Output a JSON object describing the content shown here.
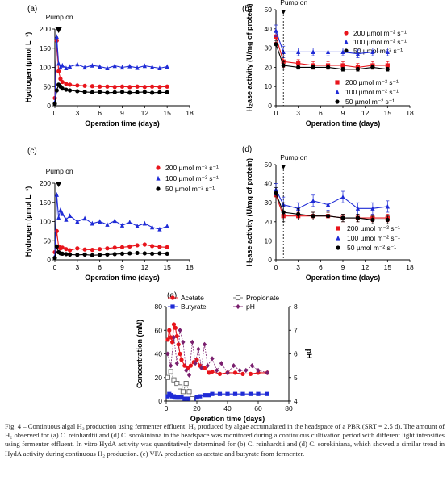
{
  "figure": {
    "caption": "Fig. 4 – Continuous algal H₂ production using fermenter effluent. H₂ produced by algae accumulated in the headspace of a PBR (SRT = 2.5 d). The amount of H₂ observed for (a) C. reinhardtii and (d) C. sorokiniana in the headspace was monitored during a continuous cultivation period with different light intensities using fermenter effluent. In vitro HydA activity was quantitatively determined for (b) C. reinhardtii and (d) C. sorokiniana, which showed a similar trend in HydA activity during continuous H₂ production. (e) VFA production as acetate and butyrate from fermenter."
  },
  "chart_data": [
    {
      "panel": "(a)",
      "type": "line",
      "annotation": "Pump on",
      "xlabel": "Operation time (days)",
      "ylabel": "Hydrogen (µmol L⁻¹)",
      "xlim": [
        0,
        18
      ],
      "ylim": [
        0,
        200
      ],
      "xticks": [
        0,
        3,
        6,
        9,
        12,
        15,
        18
      ],
      "yticks": [
        0,
        50,
        100,
        150,
        200
      ],
      "legend_position": "top-right",
      "series": [
        {
          "name": "200 µmol m⁻² s⁻¹",
          "color": "#e8141b",
          "marker": "circle",
          "x": [
            0,
            0.25,
            0.5,
            0.75,
            1,
            1.5,
            2,
            3,
            4,
            5,
            6,
            7,
            8,
            9,
            10,
            11,
            12,
            13,
            14,
            15
          ],
          "y": [
            20,
            170,
            90,
            70,
            62,
            57,
            55,
            53,
            52,
            51,
            50,
            50,
            49,
            50,
            49,
            50,
            49,
            50,
            49,
            50
          ]
        },
        {
          "name": "100 µmol m⁻² s⁻¹",
          "color": "#1f2bd6",
          "marker": "triangle",
          "x": [
            0,
            0.25,
            0.5,
            0.75,
            1,
            1.5,
            2,
            3,
            4,
            5,
            6,
            7,
            8,
            9,
            10,
            11,
            12,
            13,
            14,
            15
          ],
          "y": [
            10,
            180,
            110,
            100,
            105,
            98,
            102,
            108,
            100,
            105,
            102,
            98,
            104,
            100,
            103,
            99,
            104,
            101,
            98,
            102
          ]
        },
        {
          "name": "50 µmol m⁻² s⁻¹",
          "color": "#000000",
          "marker": "circle",
          "x": [
            0,
            0.25,
            0.5,
            0.75,
            1,
            1.5,
            2,
            3,
            4,
            5,
            6,
            7,
            8,
            9,
            10,
            11,
            12,
            13,
            14,
            15
          ],
          "y": [
            5,
            40,
            55,
            50,
            45,
            42,
            40,
            38,
            36,
            35,
            36,
            34,
            35,
            36,
            34,
            35,
            36,
            34,
            35,
            35
          ]
        }
      ]
    },
    {
      "panel": "(b)",
      "type": "line",
      "annotation": "Pump on",
      "xlabel": "Operation time (days)",
      "ylabel": "H₂ase activity (U/mg of protein)",
      "xlim": [
        0,
        18
      ],
      "ylim": [
        0,
        50
      ],
      "xticks": [
        0,
        3,
        6,
        9,
        12,
        15,
        18
      ],
      "yticks": [
        0,
        10,
        20,
        30,
        40,
        50
      ],
      "legend_position": "bottom-right",
      "series": [
        {
          "name": "200 µmol m⁻² s⁻¹",
          "color": "#e8141b",
          "marker": "square",
          "x": [
            0,
            1,
            3,
            5,
            7,
            9,
            11,
            13,
            15
          ],
          "y": [
            36,
            23,
            22,
            21,
            21,
            21,
            20,
            21,
            21
          ],
          "err": [
            3,
            3,
            2,
            2,
            2,
            2,
            2,
            2,
            2
          ]
        },
        {
          "name": "100 µmol m⁻² s⁻¹",
          "color": "#1f2bd6",
          "marker": "triangle",
          "x": [
            0,
            1,
            3,
            5,
            7,
            9,
            11,
            13,
            15
          ],
          "y": [
            39,
            28,
            28,
            28,
            28,
            28,
            27,
            28,
            28
          ],
          "err": [
            3,
            3,
            2,
            2,
            2,
            2,
            2,
            2,
            2
          ]
        },
        {
          "name": "50 µmol m⁻² s⁻¹",
          "color": "#000000",
          "marker": "circle",
          "x": [
            0,
            1,
            3,
            5,
            7,
            9,
            11,
            13,
            15
          ],
          "y": [
            32,
            21,
            20,
            20,
            20,
            19,
            19,
            20,
            19
          ],
          "err": [
            2,
            2,
            1,
            1,
            1,
            1,
            1,
            1,
            1
          ]
        }
      ]
    },
    {
      "panel": "(c)",
      "type": "line",
      "annotation": "Pump on",
      "xlabel": "Operation time (days)",
      "ylabel": "Hydrogen (µmol L⁻¹)",
      "xlim": [
        0,
        18
      ],
      "ylim": [
        0,
        200
      ],
      "xticks": [
        0,
        3,
        6,
        9,
        12,
        15,
        18
      ],
      "yticks": [
        0,
        50,
        100,
        150,
        200
      ],
      "legend_position": "top-right",
      "series": [
        {
          "name": "200 µmol m⁻² s⁻¹",
          "color": "#e8141b",
          "marker": "circle",
          "x": [
            0,
            0.25,
            0.5,
            0.75,
            1,
            1.5,
            2,
            3,
            4,
            5,
            6,
            7,
            8,
            9,
            10,
            11,
            12,
            13,
            14,
            15
          ],
          "y": [
            20,
            75,
            35,
            30,
            32,
            28,
            25,
            30,
            27,
            26,
            28,
            30,
            32,
            33,
            35,
            38,
            40,
            36,
            34,
            33
          ]
        },
        {
          "name": "100 µmol m⁻² s⁻¹",
          "color": "#1f2bd6",
          "marker": "triangle",
          "x": [
            0,
            0.25,
            0.5,
            0.75,
            1,
            1.5,
            2,
            3,
            4,
            5,
            6,
            7,
            8,
            9,
            10,
            11,
            12,
            13,
            14,
            15
          ],
          "y": [
            10,
            170,
            110,
            130,
            120,
            105,
            115,
            100,
            108,
            95,
            100,
            92,
            102,
            90,
            98,
            88,
            95,
            85,
            80,
            88
          ]
        },
        {
          "name": "50 µmol m⁻² s⁻¹",
          "color": "#000000",
          "marker": "circle",
          "x": [
            0,
            0.25,
            0.5,
            0.75,
            1,
            1.5,
            2,
            3,
            4,
            5,
            6,
            7,
            8,
            9,
            10,
            11,
            12,
            13,
            14,
            15
          ],
          "y": [
            5,
            35,
            20,
            17,
            16,
            15,
            14,
            13,
            14,
            12,
            13,
            14,
            15,
            16,
            17,
            18,
            17,
            16,
            17,
            16
          ]
        }
      ]
    },
    {
      "panel": "(d)",
      "type": "line",
      "annotation": "Pump on",
      "xlabel": "Operation time (days)",
      "ylabel": "H₂ase activity (U/mg of protein)",
      "xlim": [
        0,
        18
      ],
      "ylim": [
        0,
        50
      ],
      "xticks": [
        0,
        3,
        6,
        9,
        12,
        15,
        18
      ],
      "yticks": [
        0,
        10,
        20,
        30,
        40,
        50
      ],
      "legend_position": "bottom-right",
      "series": [
        {
          "name": "200 µmol m⁻² s⁻¹",
          "color": "#e8141b",
          "marker": "square",
          "x": [
            0,
            1,
            3,
            5,
            7,
            9,
            11,
            13,
            15
          ],
          "y": [
            34,
            23,
            23,
            23,
            23,
            22,
            22,
            22,
            22
          ],
          "err": [
            2,
            2,
            2,
            2,
            2,
            2,
            2,
            2,
            2
          ]
        },
        {
          "name": "100 µmol m⁻² s⁻¹",
          "color": "#1f2bd6",
          "marker": "triangle",
          "x": [
            0,
            1,
            3,
            5,
            7,
            9,
            11,
            13,
            15
          ],
          "y": [
            37,
            29,
            27,
            31,
            29,
            33,
            27,
            27,
            28
          ],
          "err": [
            3,
            4,
            3,
            3,
            3,
            3,
            3,
            3,
            3
          ]
        },
        {
          "name": "50 µmol m⁻² s⁻¹",
          "color": "#000000",
          "marker": "circle",
          "x": [
            0,
            1,
            3,
            5,
            7,
            9,
            11,
            13,
            15
          ],
          "y": [
            35,
            25,
            24,
            23,
            23,
            22,
            22,
            21,
            21
          ],
          "err": [
            3,
            5,
            3,
            2,
            2,
            2,
            2,
            2,
            2
          ]
        }
      ]
    },
    {
      "panel": "(e)",
      "type": "line",
      "xlabel": "Operation time (days)",
      "ylabel": "Concentration (mM)",
      "y2label": "pH",
      "xlim": [
        0,
        80
      ],
      "ylim": [
        0,
        80
      ],
      "y2lim": [
        4,
        8
      ],
      "xticks": [
        0,
        20,
        40,
        60,
        80
      ],
      "yticks": [
        0,
        20,
        40,
        60,
        80
      ],
      "y2ticks": [
        4,
        5,
        6,
        7,
        8
      ],
      "legend_position": "top",
      "series": [
        {
          "name": "Acetate",
          "color": "#e8141b",
          "marker": "circle",
          "axis": "left",
          "x": [
            1,
            2,
            3,
            4,
            5,
            6,
            7,
            8,
            9,
            10,
            12,
            14,
            16,
            18,
            20,
            22,
            25,
            28,
            30,
            35,
            40,
            45,
            50,
            55,
            60,
            66
          ],
          "y": [
            52,
            60,
            54,
            50,
            65,
            62,
            55,
            48,
            40,
            35,
            30,
            28,
            30,
            33,
            35,
            30,
            28,
            24,
            25,
            23,
            24,
            24,
            23,
            23,
            24,
            24
          ]
        },
        {
          "name": "Butyrate",
          "color": "#1f2bd6",
          "marker": "square",
          "axis": "left",
          "x": [
            1,
            2,
            3,
            4,
            5,
            6,
            7,
            8,
            9,
            10,
            12,
            14,
            16,
            18,
            20,
            22,
            25,
            28,
            30,
            35,
            40,
            45,
            50,
            55,
            60,
            66
          ],
          "y": [
            4,
            6,
            5,
            4,
            4,
            3,
            3,
            3,
            3,
            3,
            2,
            2,
            2,
            2,
            3,
            4,
            5,
            5,
            6,
            6,
            6,
            6,
            6,
            6,
            6,
            6
          ]
        },
        {
          "name": "Propionate",
          "color": "#666666",
          "marker": "open-square",
          "axis": "left",
          "x": [
            1,
            3,
            5,
            7,
            9,
            11,
            13,
            15,
            17
          ],
          "y": [
            20,
            25,
            18,
            15,
            12,
            8,
            15,
            8,
            2
          ]
        },
        {
          "name": "pH",
          "color": "#7a1f6e",
          "marker": "diamond",
          "axis": "right",
          "x": [
            1,
            3,
            5,
            7,
            9,
            11,
            13,
            15,
            17,
            19,
            21,
            23,
            25,
            27,
            30,
            33,
            36,
            40,
            44,
            48,
            52,
            56,
            60,
            66
          ],
          "y": [
            6.0,
            5.5,
            6.7,
            5.6,
            7.0,
            6.5,
            5.3,
            5.1,
            6.5,
            5.6,
            6.2,
            5.4,
            6.4,
            5.5,
            5.8,
            5.3,
            5.6,
            5.2,
            5.5,
            5.3,
            5.3,
            5.5,
            5.3,
            5.2
          ]
        }
      ]
    }
  ]
}
